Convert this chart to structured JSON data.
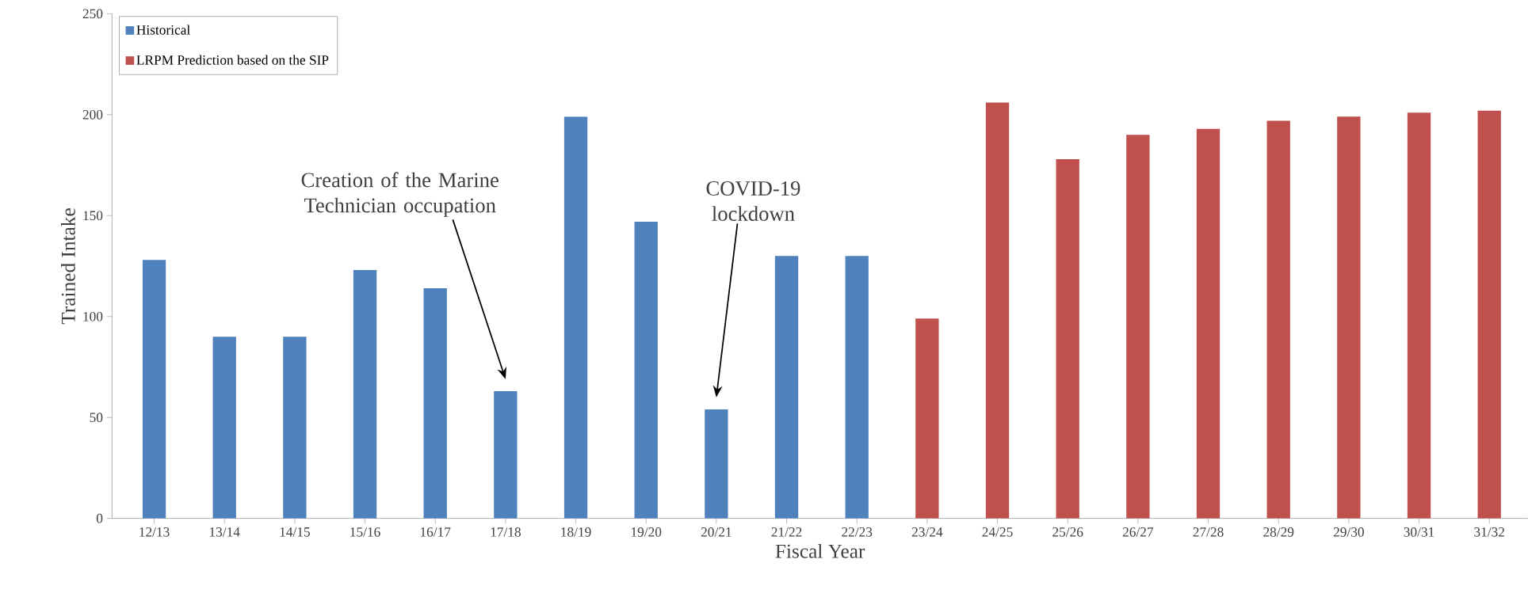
{
  "chart_data": {
    "type": "bar",
    "xlabel": "Fiscal Year",
    "ylabel": "Trained Intake",
    "categories": [
      "12/13",
      "13/14",
      "14/15",
      "15/16",
      "16/17",
      "17/18",
      "18/19",
      "19/20",
      "20/21",
      "21/22",
      "22/23",
      "23/24",
      "24/25",
      "25/26",
      "26/27",
      "27/28",
      "28/29",
      "29/30",
      "30/31",
      "31/32"
    ],
    "series": [
      {
        "name": "Historical",
        "color": "#4f81bd",
        "values": [
          128,
          90,
          90,
          123,
          114,
          63,
          199,
          147,
          54,
          130,
          130,
          null,
          null,
          null,
          null,
          null,
          null,
          null,
          null,
          null
        ]
      },
      {
        "name": "LRPM Prediction based on the SIP",
        "color": "#c0504d",
        "values": [
          null,
          null,
          null,
          null,
          null,
          null,
          null,
          null,
          null,
          null,
          null,
          99,
          206,
          178,
          190,
          193,
          197,
          199,
          201,
          202
        ]
      }
    ],
    "ylim": [
      0,
      250
    ],
    "yticks": [
      0,
      50,
      100,
      150,
      200,
      250
    ],
    "grid": false,
    "legend": "top left",
    "annotations": [
      "Creation of the Marine Technician occupation",
      "COVID-19 lockdown"
    ]
  }
}
